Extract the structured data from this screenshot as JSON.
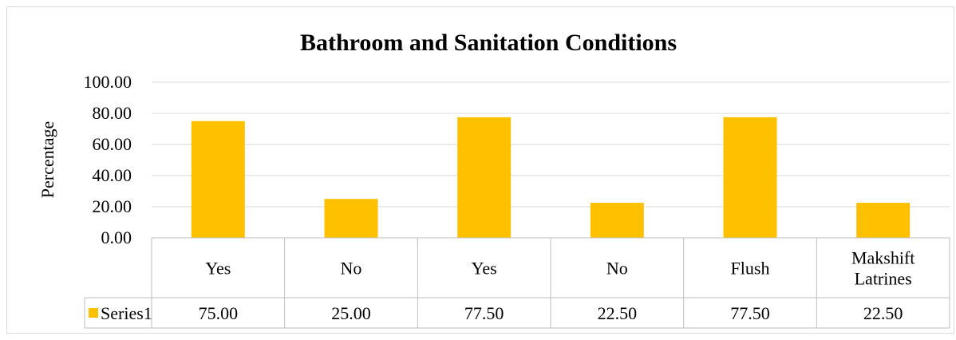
{
  "chart_data": {
    "type": "bar",
    "title": "Bathroom and Sanitation Conditions",
    "xlabel": "",
    "ylabel": "Percentage",
    "ylim": [
      0,
      100
    ],
    "y_ticks": [
      "0.00",
      "20.00",
      "40.00",
      "60.00",
      "80.00",
      "100.00"
    ],
    "y_tick_values": [
      0,
      20,
      40,
      60,
      80,
      100
    ],
    "categories": [
      "Yes",
      "No",
      "Yes",
      "No",
      "Flush",
      "Makshift Latrines"
    ],
    "category_lines": [
      [
        "Yes"
      ],
      [
        "No"
      ],
      [
        "Yes"
      ],
      [
        "No"
      ],
      [
        "Flush"
      ],
      [
        "Makshift",
        "Latrines"
      ]
    ],
    "series": [
      {
        "name": "Series1",
        "values": [
          75.0,
          25.0,
          77.5,
          22.5,
          77.5,
          22.5
        ],
        "labels": [
          "75.00",
          "25.00",
          "77.50",
          "22.50",
          "77.50",
          "22.50"
        ],
        "color": "#FFC000"
      }
    ],
    "grid": true,
    "legend": "data-table",
    "gridline_color": "#d9d9d9",
    "table_line_color": "#bfbfbf"
  }
}
